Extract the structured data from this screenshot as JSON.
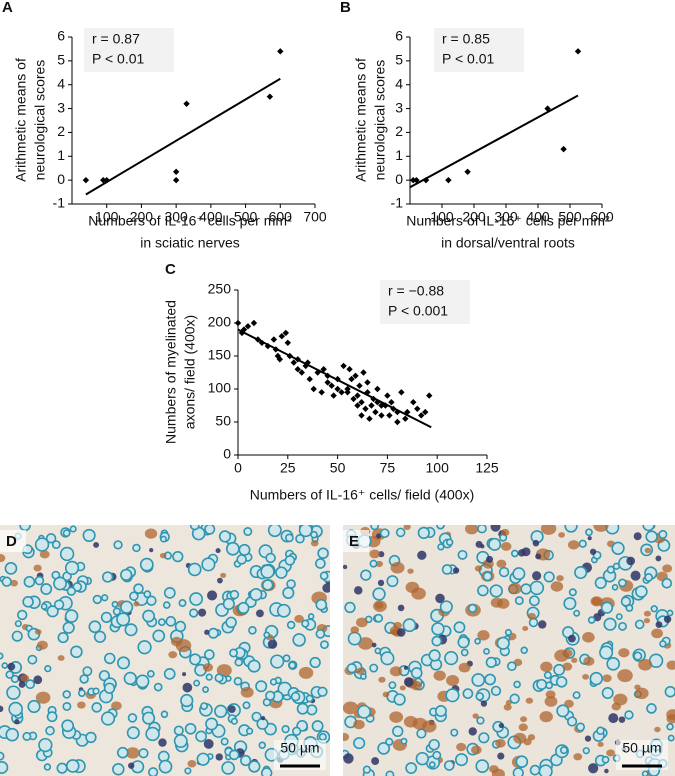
{
  "chart_data": [
    {
      "type": "scatter",
      "panel": "A",
      "annotations": [
        "r = 0.87",
        "P < 0.01"
      ],
      "ylabel": [
        "Arithmetic means of",
        "neurological scores"
      ],
      "xlabel": [
        "Numbers of IL-16⁺ cells per mm²",
        "in sciatic nerves"
      ],
      "x": [
        40,
        90,
        100,
        300,
        300,
        330,
        570,
        600
      ],
      "values": [
        0,
        0,
        0,
        0,
        0.35,
        3.2,
        3.5,
        5.4
      ],
      "fit": {
        "x": [
          40,
          600
        ],
        "values": [
          -0.6,
          4.25
        ]
      },
      "color": "#000000",
      "xlim": [
        0,
        700
      ],
      "xticks": [
        100,
        200,
        300,
        400,
        500,
        600,
        700
      ],
      "ylim": [
        -1,
        6
      ],
      "yticks": [
        -1,
        0,
        1,
        2,
        3,
        4,
        5,
        6
      ]
    },
    {
      "type": "scatter",
      "panel": "B",
      "annotations": [
        "r = 0.85",
        "P < 0.01"
      ],
      "ylabel": [
        "Arithmetic means of",
        "neurological scores"
      ],
      "xlabel": [
        "Numbers of IL-16⁺ cells per mm²",
        "in dorsal/ventral roots"
      ],
      "x": [
        10,
        20,
        50,
        120,
        180,
        430,
        480,
        525
      ],
      "values": [
        0,
        0,
        0,
        0,
        0.35,
        3.0,
        1.3,
        5.4
      ],
      "fit": {
        "x": [
          0,
          525
        ],
        "values": [
          -0.3,
          3.55
        ]
      },
      "color": "#000000",
      "xlim": [
        0,
        600
      ],
      "xticks": [
        100,
        200,
        300,
        400,
        500,
        600
      ],
      "ylim": [
        -1,
        6
      ],
      "yticks": [
        -1,
        0,
        1,
        2,
        3,
        4,
        5,
        6
      ]
    },
    {
      "type": "scatter",
      "panel": "C",
      "annotations": [
        "r = −0.88",
        "P < 0.001"
      ],
      "ylabel": [
        "Numbers of myelinated",
        "axons/ field (400x)"
      ],
      "xlabel": [
        "Numbers of IL-16⁺ cells/ field (400x)"
      ],
      "x": [
        0,
        2,
        3,
        5,
        8,
        10,
        12,
        15,
        18,
        19,
        20,
        21,
        22,
        24,
        25,
        26,
        28,
        30,
        30,
        32,
        34,
        35,
        36,
        38,
        40,
        42,
        43,
        45,
        45,
        47,
        48,
        50,
        50,
        52,
        53,
        55,
        55,
        56,
        57,
        58,
        59,
        60,
        60,
        61,
        62,
        62,
        63,
        64,
        65,
        65,
        66,
        67,
        68,
        69,
        70,
        70,
        72,
        72,
        74,
        75,
        76,
        77,
        78,
        80,
        80,
        82,
        84,
        85,
        88,
        90,
        92,
        94,
        96
      ],
      "values": [
        200,
        185,
        190,
        195,
        200,
        175,
        170,
        165,
        175,
        160,
        150,
        145,
        180,
        185,
        170,
        150,
        140,
        145,
        130,
        125,
        135,
        140,
        115,
        100,
        125,
        95,
        130,
        110,
        120,
        105,
        90,
        100,
        115,
        95,
        135,
        95,
        100,
        130,
        115,
        85,
        120,
        75,
        90,
        105,
        60,
        80,
        125,
        70,
        95,
        110,
        55,
        75,
        85,
        65,
        100,
        80,
        60,
        75,
        75,
        90,
        60,
        80,
        70,
        50,
        65,
        95,
        55,
        65,
        80,
        70,
        60,
        65,
        90
      ],
      "fit": {
        "x": [
          0,
          97
        ],
        "values": [
          190,
          42
        ]
      },
      "color": "#000000",
      "xlim": [
        0,
        125
      ],
      "xticks": [
        0,
        25,
        50,
        75,
        100,
        125
      ],
      "ylim": [
        0,
        250
      ],
      "yticks": [
        0,
        50,
        100,
        150,
        200,
        250
      ]
    }
  ],
  "panels": [
    {
      "label": "D",
      "scale_bar": "50 µm"
    },
    {
      "label": "E",
      "scale_bar": "50 µm"
    }
  ]
}
